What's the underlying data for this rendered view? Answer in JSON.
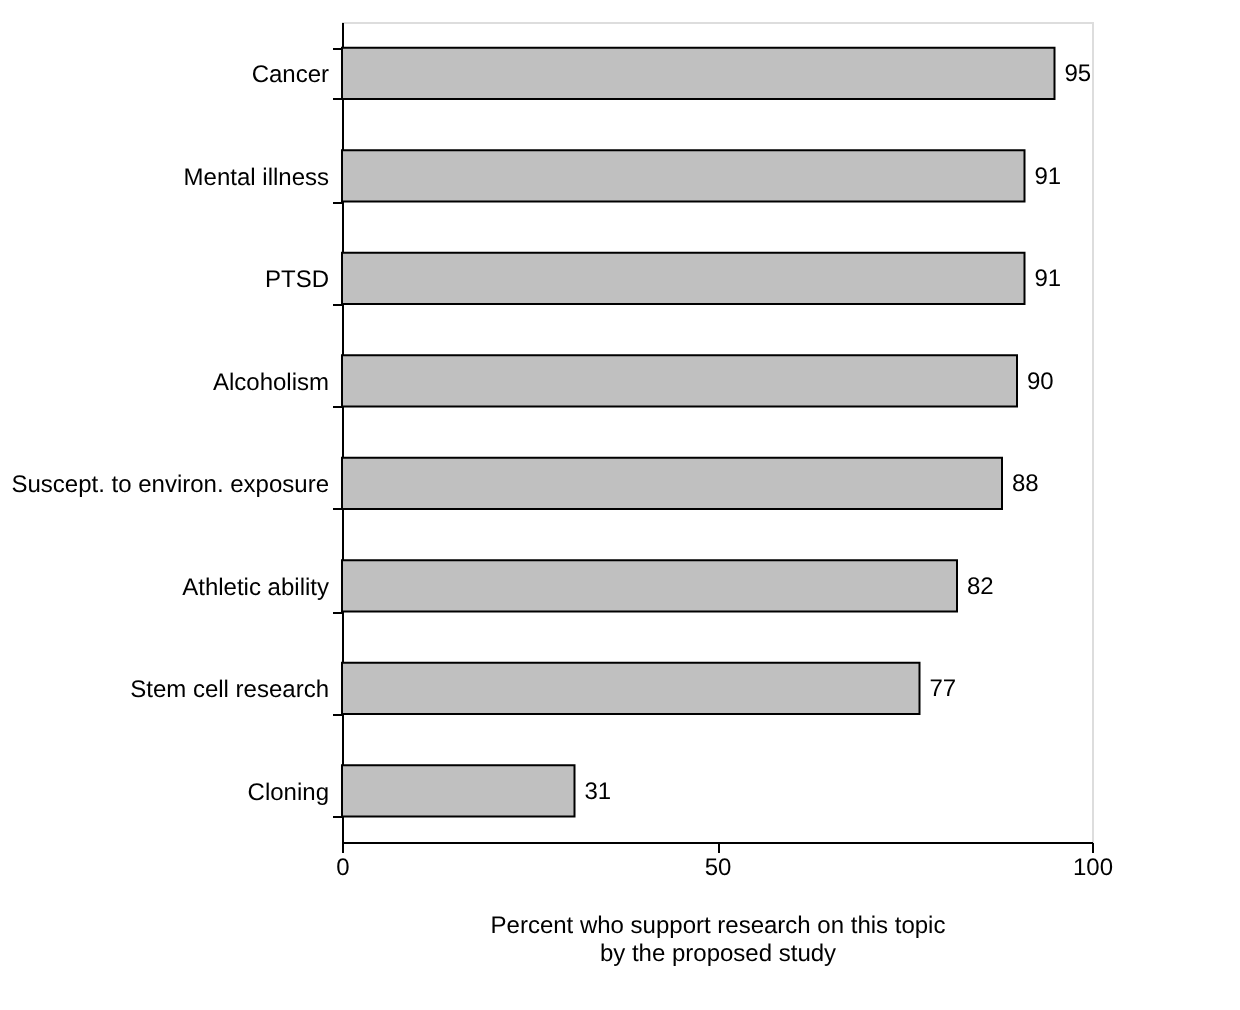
{
  "chart_data": {
    "type": "bar",
    "orientation": "horizontal",
    "categories": [
      "Cancer",
      "Mental illness",
      "PTSD",
      "Alcoholism",
      "Suscept. to environ. exposure",
      "Athletic ability",
      "Stem cell research",
      "Cloning"
    ],
    "values": [
      95,
      91,
      91,
      90,
      88,
      82,
      77,
      31
    ],
    "color": "#c0c0c0",
    "xlim": [
      0,
      100
    ],
    "xticks": [
      0,
      50,
      100
    ],
    "xlabel": "Percent who support research on this topic by the proposed study",
    "data_labels": true,
    "grid": false
  }
}
